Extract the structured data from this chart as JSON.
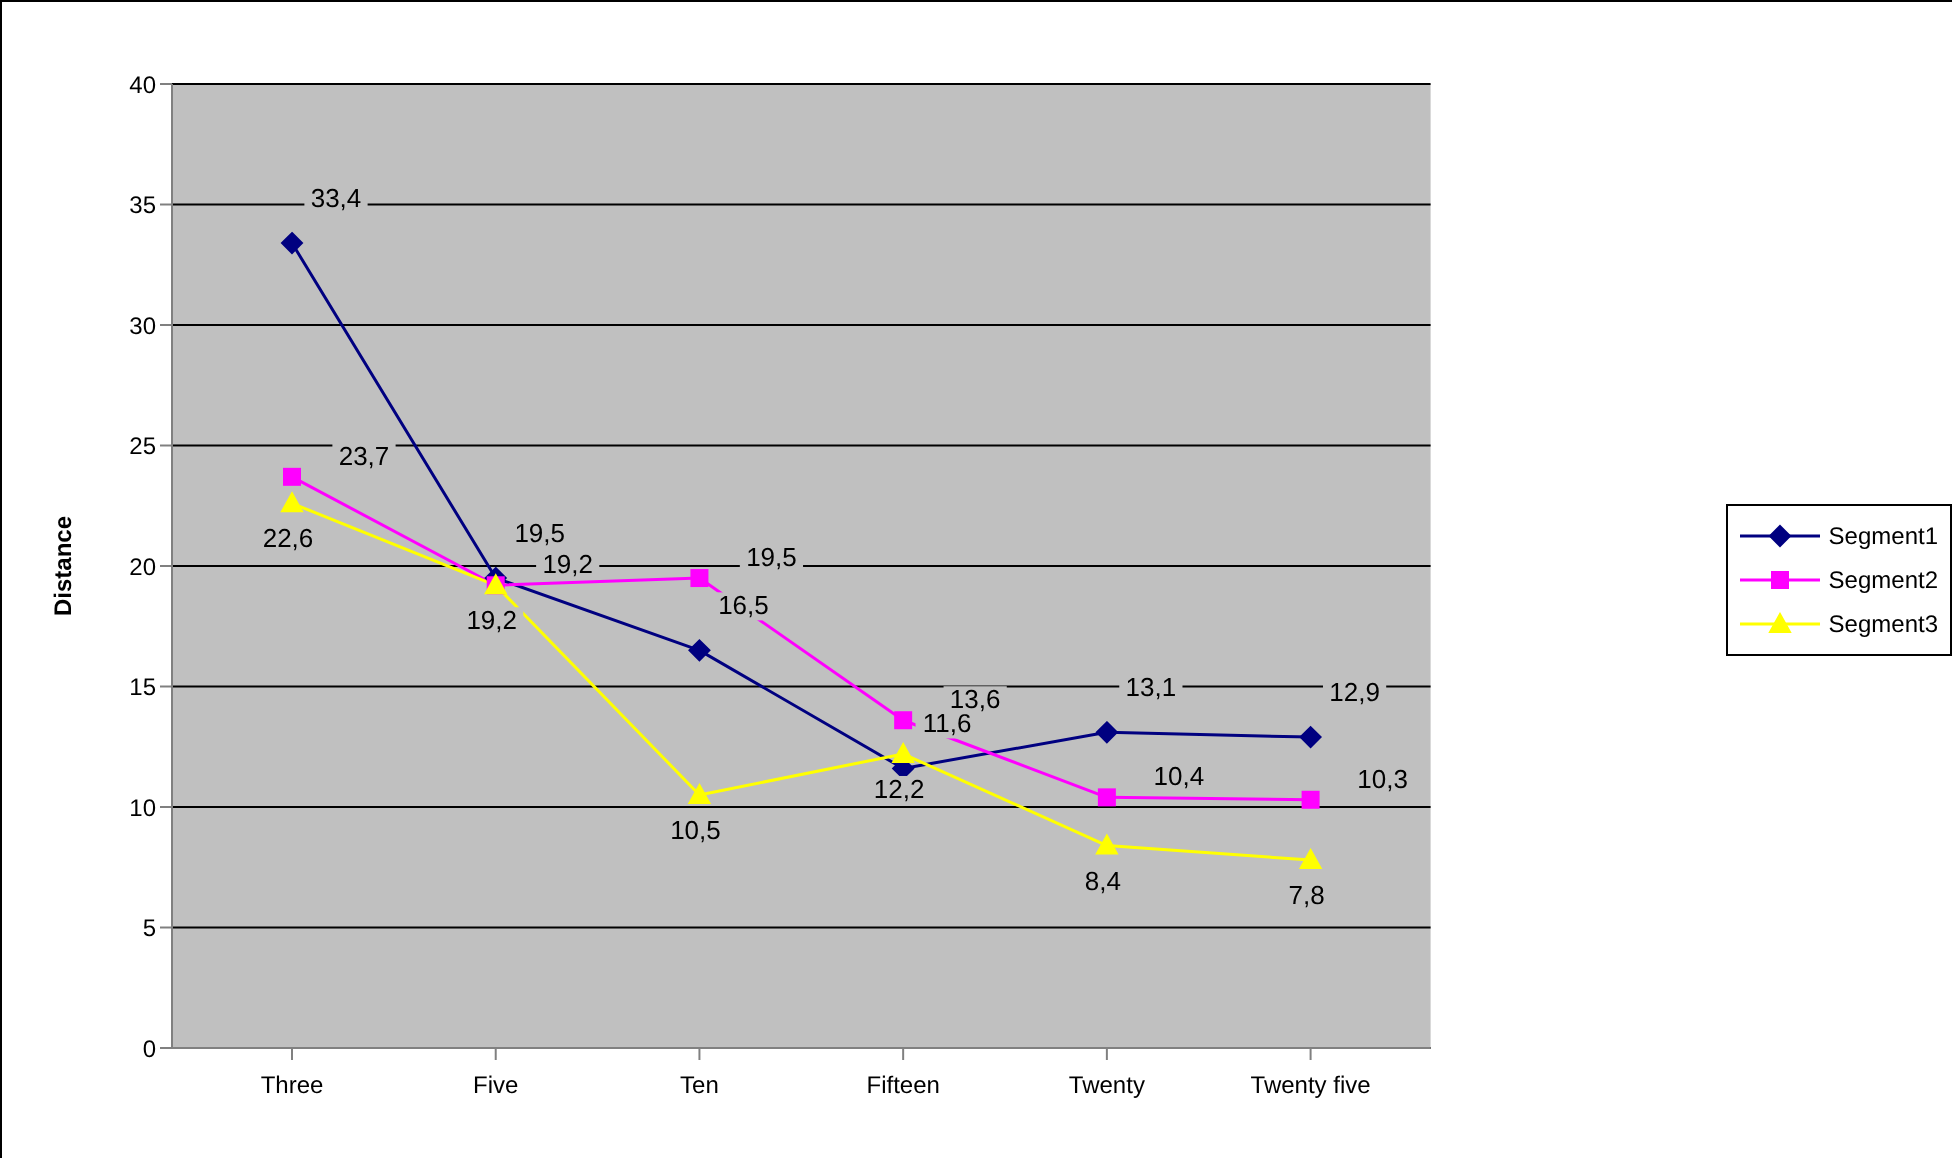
{
  "chart_data": {
    "type": "line",
    "ylabel": "Distance",
    "categories": [
      "Three",
      "Five",
      "Ten",
      "Fifteen",
      "Twenty",
      "Twenty five"
    ],
    "ylim": [
      0,
      40
    ],
    "yticks": [
      0,
      5,
      10,
      15,
      20,
      25,
      30,
      35,
      40
    ],
    "grid": "y",
    "legend": "right",
    "series": [
      {
        "name": "Segment1",
        "color": "#000080",
        "marker": "diamond",
        "values": [
          33.4,
          19.5,
          16.5,
          11.6,
          13.1,
          12.9
        ],
        "value_labels": [
          "33,4",
          "19,5",
          "16,5",
          "11,6",
          "13,1",
          "12,9"
        ]
      },
      {
        "name": "Segment2",
        "color": "#ff00ff",
        "marker": "square",
        "values": [
          23.7,
          19.2,
          19.5,
          13.6,
          10.4,
          10.3
        ],
        "value_labels": [
          "23,7",
          "19,2",
          "19,5",
          "13,6",
          "10,4",
          "10,3"
        ]
      },
      {
        "name": "Segment3",
        "color": "#ffff00",
        "marker": "triangle",
        "values": [
          22.6,
          19.2,
          10.5,
          12.2,
          8.4,
          7.8
        ],
        "value_labels": [
          "22,6",
          "19,2",
          "10,5",
          "12,2",
          "8,4",
          "7,8"
        ]
      }
    ]
  }
}
